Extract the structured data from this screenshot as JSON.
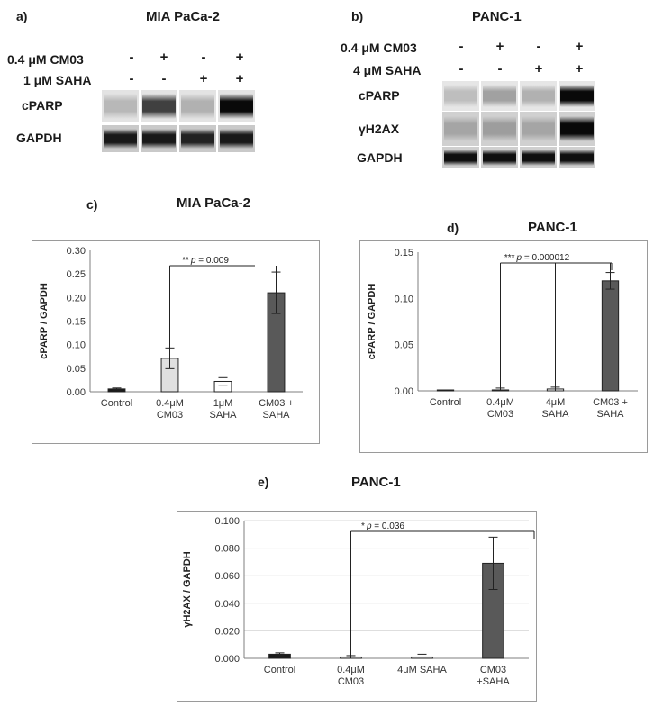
{
  "blots": [
    {
      "letter": "a)",
      "title": "MIA PaCa-2",
      "treatments": [
        {
          "label": "0.4 μM CM03",
          "signs": [
            "-",
            "+",
            "-",
            "+"
          ]
        },
        {
          "label": "1 μM SAHA",
          "signs": [
            "-",
            "-",
            "+",
            "+"
          ]
        }
      ],
      "rows": [
        {
          "label": "cPARP",
          "intensity": [
            0.08,
            0.7,
            0.12,
            0.98
          ]
        },
        {
          "label": "GAPDH",
          "intensity": [
            0.9,
            0.9,
            0.85,
            0.9
          ]
        }
      ]
    },
    {
      "letter": "b)",
      "title": "PANC-1",
      "treatments": [
        {
          "label": "0.4 μM CM03",
          "signs": [
            "-",
            "+",
            "-",
            "+"
          ]
        },
        {
          "label": "4 μM SAHA",
          "signs": [
            "-",
            "-",
            "+",
            "+"
          ]
        }
      ],
      "rows": [
        {
          "label": "cPARP",
          "intensity": [
            0.05,
            0.2,
            0.12,
            0.98
          ]
        },
        {
          "label": "γH2AX",
          "intensity": [
            0.18,
            0.22,
            0.18,
            0.98
          ]
        },
        {
          "label": "GAPDH",
          "intensity": [
            0.95,
            0.95,
            0.95,
            0.95
          ]
        }
      ]
    }
  ],
  "chart_data": [
    {
      "letter": "c)",
      "type": "bar",
      "title": "MIA PaCa-2",
      "ylabel": "cPARP / GAPDH",
      "ylim": [
        0,
        0.3
      ],
      "yticks": [
        "0.00",
        "0.05",
        "0.10",
        "0.15",
        "0.20",
        "0.25",
        "0.30"
      ],
      "categories": [
        [
          "Control"
        ],
        [
          "0.4μM",
          "CM03"
        ],
        [
          "1μM",
          "SAHA"
        ],
        [
          "CM03 +",
          "SAHA"
        ]
      ],
      "values": [
        0.006,
        0.071,
        0.022,
        0.21
      ],
      "errors": [
        0.002,
        0.022,
        0.008,
        0.044
      ],
      "colors": [
        "#1a1a1a",
        "#e0e0e0",
        "#ffffff",
        "#595959"
      ],
      "annotation": {
        "stars": "**",
        "p_label": "p",
        "p_value": " = 0.009"
      },
      "grid": false
    },
    {
      "letter": "d)",
      "type": "bar",
      "title": "PANC-1",
      "ylabel": "cPARP / GAPDH",
      "ylim": [
        0,
        0.15
      ],
      "yticks": [
        "0.00",
        "0.05",
        "0.10",
        "0.15"
      ],
      "categories": [
        [
          "Control"
        ],
        [
          "0.4μM",
          "CM03"
        ],
        [
          "4μM",
          "SAHA"
        ],
        [
          "CM03 +",
          "SAHA"
        ]
      ],
      "values": [
        0.0,
        0.001,
        0.002,
        0.119
      ],
      "errors": [
        0.0,
        0.002,
        0.002,
        0.009
      ],
      "colors": [
        "#1a1a1a",
        "#e0e0e0",
        "#ffffff",
        "#595959"
      ],
      "annotation": {
        "stars": "***",
        "p_label": "p",
        "p_value": " = 0.000012"
      },
      "grid": false
    },
    {
      "letter": "e)",
      "type": "bar",
      "title": "PANC-1",
      "ylabel": "γH2AX / GAPDH",
      "ylim": [
        0,
        0.1
      ],
      "yticks": [
        "0.000",
        "0.020",
        "0.040",
        "0.060",
        "0.080",
        "0.100"
      ],
      "categories": [
        [
          "Control"
        ],
        [
          "0.4μM",
          "CM03"
        ],
        [
          "4μM SAHA"
        ],
        [
          "CM03",
          "+SAHA"
        ]
      ],
      "values": [
        0.003,
        0.001,
        0.001,
        0.069
      ],
      "errors": [
        0.001,
        0.001,
        0.002,
        0.019
      ],
      "colors": [
        "#1a1a1a",
        "#e0e0e0",
        "#e0e0e0",
        "#595959"
      ],
      "annotation": {
        "stars": "*",
        "p_label": "p",
        "p_value": " = 0.036"
      },
      "grid": true
    }
  ]
}
